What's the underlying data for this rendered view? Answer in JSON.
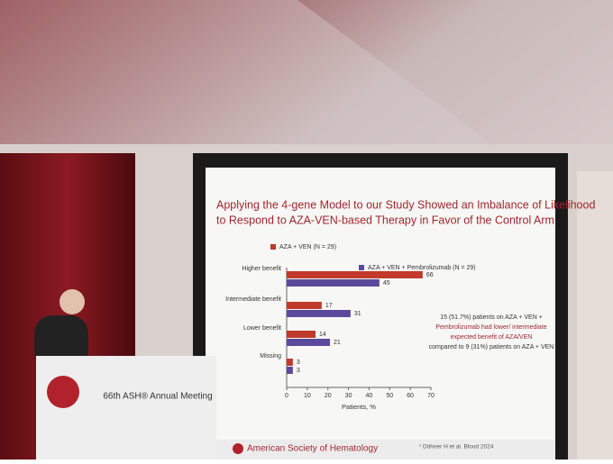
{
  "chart_data": {
    "type": "hbar",
    "title": [
      "Applying the 4-gene Model to our Study Showed an Imbalance of Likelihood",
      "to Respond to AZA-VEN-based Therapy in Favor of the Control Arm"
    ],
    "categories": [
      "Higher benefit",
      "Intermediate benefit",
      "Lower benefit",
      "Missing"
    ],
    "series": [
      {
        "name": "AZA + VEN (N = 29)",
        "color": "#c0392b",
        "values": [
          66,
          17,
          14,
          3
        ]
      },
      {
        "name": "AZA + VEN + Pembrolizumab (N = 29)",
        "color": "#5b4a9b",
        "values": [
          45,
          31,
          21,
          3
        ]
      }
    ],
    "xlim": [
      0,
      70
    ],
    "xticks": [
      0,
      10,
      20,
      30,
      40,
      50,
      60,
      70
    ],
    "xlabel": "Patients, %",
    "annotation": [
      "15 (51.7%) patients on AZA + VEN +",
      "Pembrolizumab had lower/ intermediate",
      "expected benefit of AZA/VEN",
      "compared to 9 (31%) patients on AZA + VEN"
    ],
    "source": "American Society of Hematology",
    "reference": "¹ Döhner H et al. Blood 2024",
    "podium": "66th ASH® Annual Meeting"
  }
}
